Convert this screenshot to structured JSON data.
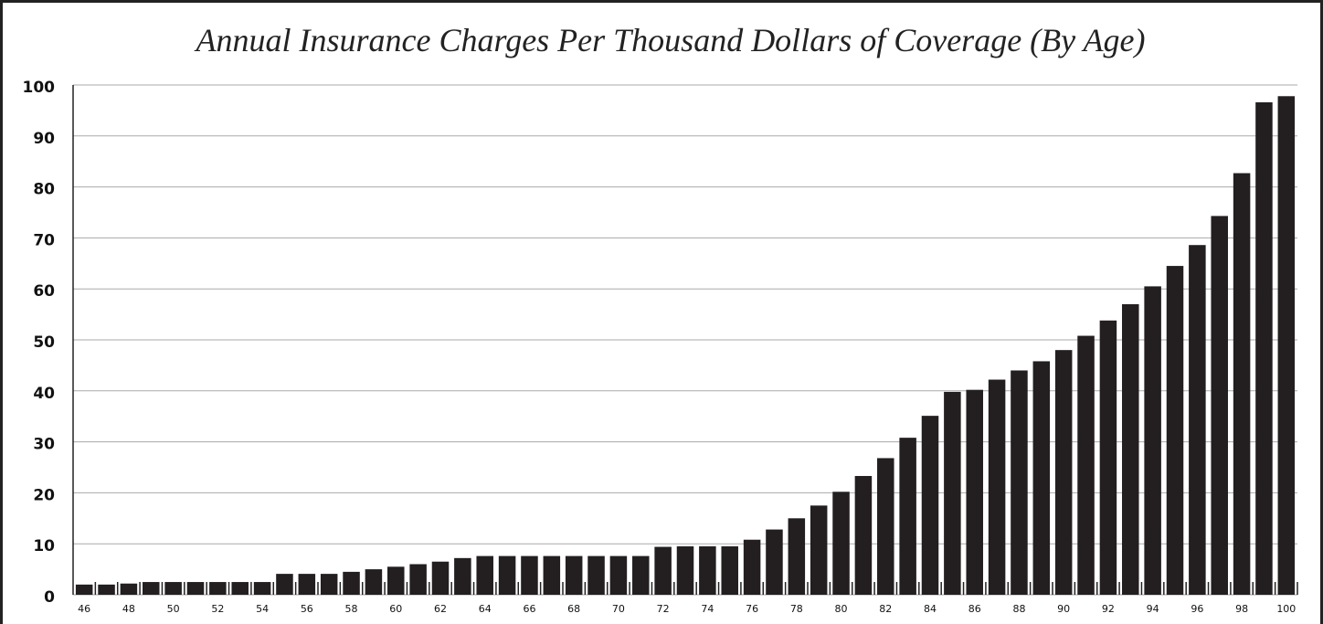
{
  "chart_data": {
    "type": "bar",
    "title": "Annual Insurance Charges Per Thousand Dollars of Coverage (By Age)",
    "categories": [
      "46",
      null,
      "48",
      null,
      "50",
      null,
      "52",
      null,
      "54",
      null,
      "56",
      null,
      "58",
      null,
      "60",
      null,
      "62",
      null,
      "64",
      null,
      "66",
      null,
      "68",
      null,
      "70",
      null,
      "72",
      null,
      "74",
      null,
      "76",
      null,
      "78",
      null,
      "80",
      null,
      "82",
      null,
      "84",
      null,
      "86",
      null,
      "88",
      null,
      "90",
      null,
      "92",
      null,
      "94",
      null,
      "96",
      null,
      "98",
      null,
      "100"
    ],
    "values": [
      2.0,
      2.0,
      2.2,
      2.5,
      2.5,
      2.5,
      2.5,
      2.5,
      2.5,
      4.1,
      4.1,
      4.1,
      4.5,
      5.0,
      5.5,
      6.0,
      6.5,
      7.2,
      7.6,
      7.6,
      7.6,
      7.6,
      7.6,
      7.6,
      7.6,
      7.6,
      9.4,
      9.5,
      9.5,
      9.5,
      10.8,
      12.8,
      15,
      17.5,
      20.2,
      23.3,
      26.8,
      30.8,
      35.1,
      39.8,
      40.2,
      42.2,
      44,
      45.8,
      48,
      50.8,
      53.8,
      57,
      60.5,
      64.5,
      68.6,
      74.3,
      82.7,
      96.6,
      97.8
    ],
    "color": "#231f20",
    "ylim": [
      0,
      100
    ],
    "yticks": [
      0,
      10,
      20,
      30,
      40,
      50,
      60,
      70,
      80,
      90,
      100
    ],
    "grid": true
  }
}
